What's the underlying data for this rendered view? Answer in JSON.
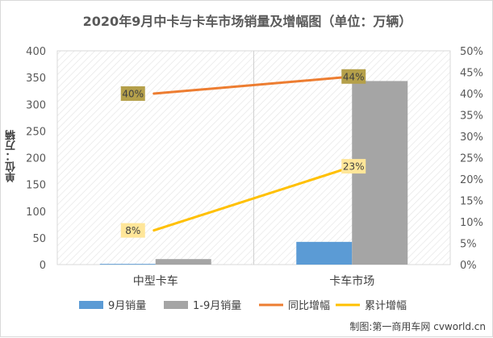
{
  "chart_data": {
    "type": "bar",
    "title": "2020年9月中卡与卡车市场销量及增幅图（单位：万辆）",
    "ylabel": "单位：万辆",
    "categories": [
      "中型卡车",
      "卡车市场"
    ],
    "ylim": [
      0,
      400
    ],
    "y2lim": [
      0,
      0.5
    ],
    "y_ticks": [
      "0",
      "50",
      "100",
      "150",
      "200",
      "250",
      "300",
      "350",
      "400"
    ],
    "y2_ticks": [
      "0%",
      "5%",
      "10%",
      "15%",
      "20%",
      "25%",
      "30%",
      "35%",
      "40%",
      "45%",
      "50%"
    ],
    "series": [
      {
        "name": "9月销量",
        "kind": "bar",
        "axis": "left",
        "color": "#5b9bd5",
        "values": [
          1.3,
          42.5
        ]
      },
      {
        "name": "1-9月销量",
        "kind": "bar",
        "axis": "left",
        "color": "#a5a5a5",
        "values": [
          10.3,
          343.5
        ]
      },
      {
        "name": "同比增幅",
        "kind": "line",
        "axis": "right",
        "color": "#ed7d31",
        "values": [
          0.4,
          0.44
        ],
        "labels": [
          "40%",
          "44%"
        ],
        "label_bg": "#b5a04a"
      },
      {
        "name": "累计增幅",
        "kind": "line",
        "axis": "right",
        "color": "#ffc000",
        "values": [
          0.08,
          0.23
        ],
        "labels": [
          "8%",
          "23%"
        ],
        "label_bg": "#ffe699"
      }
    ],
    "grid": true,
    "legend": "bottom"
  },
  "credit": "制图:第一商用车网 cvworld.cn"
}
